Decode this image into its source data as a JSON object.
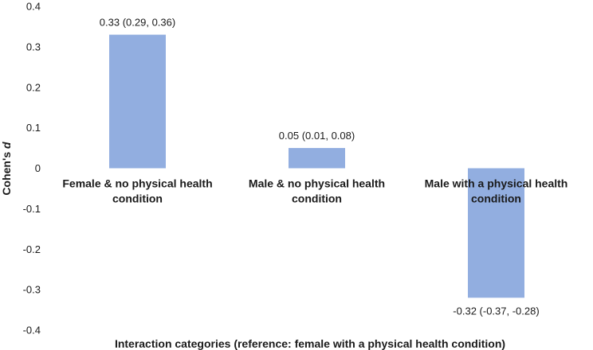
{
  "chart_data": {
    "type": "bar",
    "title": "",
    "xlabel": "Interaction categories (reference: female with a physical health condition)",
    "ylabel_prefix": "Cohen's ",
    "ylabel_italic": "d",
    "ylim": [
      -0.4,
      0.4
    ],
    "yticks": [
      "0.4",
      "0.3",
      "0.2",
      "0.1",
      "0",
      "-0.1",
      "-0.2",
      "-0.3",
      "-0.4"
    ],
    "ytick_values": [
      0.4,
      0.3,
      0.2,
      0.1,
      0,
      -0.1,
      -0.2,
      -0.3,
      -0.4
    ],
    "bar_color": "#92aee0",
    "categories": [
      [
        "Female & no physical health",
        "condition"
      ],
      [
        "Male & no physical health",
        "condition"
      ],
      [
        "Male with a physical health",
        "condition"
      ]
    ],
    "values": [
      0.33,
      0.05,
      -0.32
    ],
    "data_labels": [
      "0.33 (0.29, 0.36)",
      "0.05 (0.01, 0.08)",
      "-0.32 (-0.37, -0.28)"
    ]
  }
}
